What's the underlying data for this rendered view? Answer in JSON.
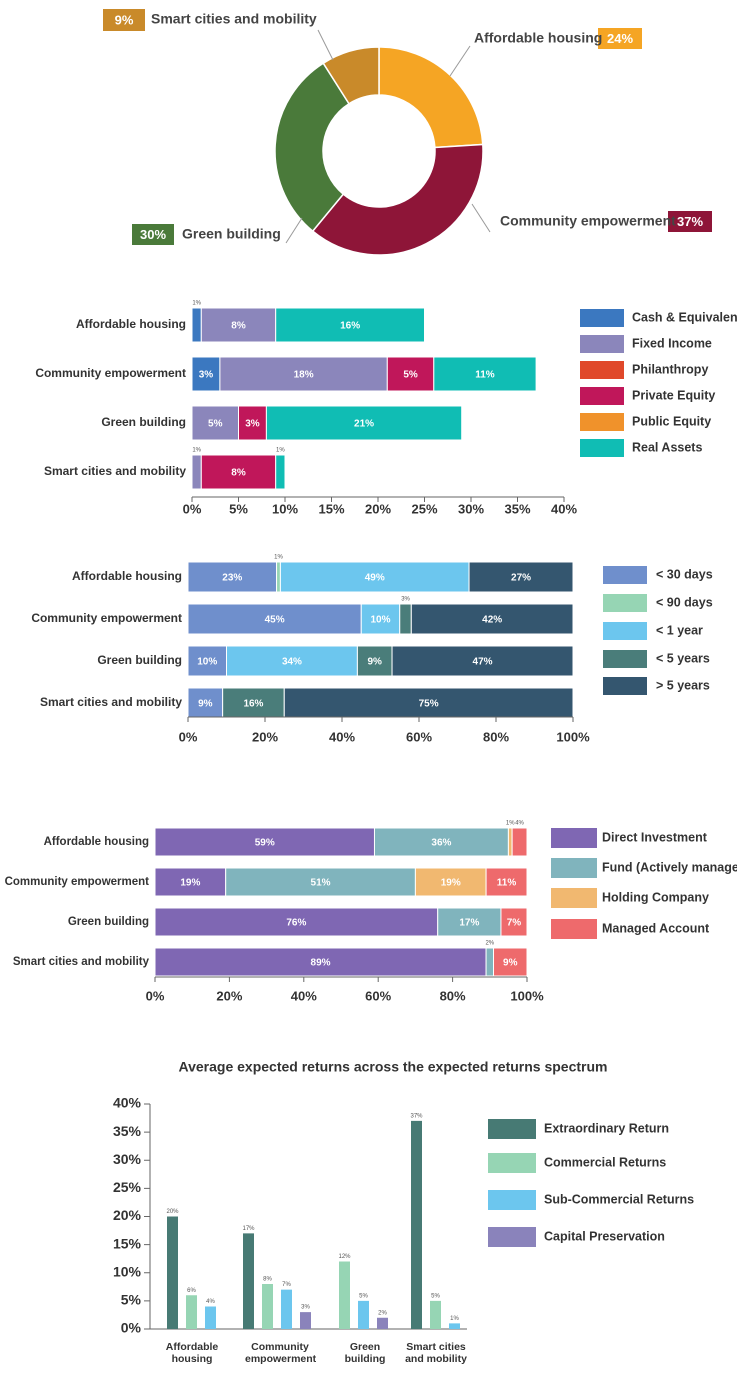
{
  "chart_data": [
    {
      "type": "pie",
      "donut": true,
      "categories": [
        "Affordable housing",
        "Community empowerment",
        "Green building",
        "Smart cities and mobility"
      ],
      "values": [
        24,
        37,
        30,
        9
      ],
      "value_labels": [
        "24%",
        "37%",
        "30%",
        "9%"
      ],
      "colors": [
        "#f5a524",
        "#8e1538",
        "#4a7a3a",
        "#c98a2a"
      ]
    },
    {
      "type": "bar",
      "orientation": "horizontal",
      "stacked": true,
      "categories": [
        "Affordable housing",
        "Community empowerment",
        "Green building",
        "Smart cities and mobility"
      ],
      "series": [
        {
          "name": "Cash & Equivalents",
          "color": "#3b78c0",
          "values": [
            1,
            3,
            0,
            0
          ],
          "value_labels": [
            "1%",
            "3%",
            null,
            null
          ]
        },
        {
          "name": "Fixed Income",
          "color": "#8b86bb",
          "values": [
            8,
            18,
            5,
            1
          ],
          "value_labels": [
            "8%",
            "18%",
            "5%",
            "1%"
          ]
        },
        {
          "name": "Philanthropy",
          "color": "#e0482a",
          "values": [
            0,
            0,
            0,
            0
          ],
          "value_labels": [
            null,
            null,
            null,
            null
          ]
        },
        {
          "name": "Private Equity",
          "color": "#c0175a",
          "values": [
            0,
            5,
            3,
            8
          ],
          "value_labels": [
            null,
            "5%",
            "3%",
            "8%"
          ]
        },
        {
          "name": "Public Equity",
          "color": "#f0922b",
          "values": [
            0,
            0,
            0,
            0
          ],
          "value_labels": [
            null,
            null,
            null,
            null
          ]
        },
        {
          "name": "Real Assets",
          "color": "#10bdb4",
          "values": [
            16,
            11,
            21,
            1
          ],
          "value_labels": [
            "16%",
            "11%",
            "21%",
            "1%"
          ]
        }
      ],
      "xlim": [
        0,
        40
      ],
      "xticks": [
        {
          "value": 0,
          "label": "0%"
        },
        {
          "value": 5,
          "label": "5%"
        },
        {
          "value": 10,
          "label": "10%"
        },
        {
          "value": 15,
          "label": "15%"
        },
        {
          "value": 20,
          "label": "20%"
        },
        {
          "value": 25,
          "label": "25%"
        },
        {
          "value": 30,
          "label": "30%"
        },
        {
          "value": 35,
          "label": "35%"
        },
        {
          "value": 40,
          "label": "40%"
        }
      ]
    },
    {
      "type": "bar",
      "orientation": "horizontal",
      "stacked": true,
      "categories": [
        "Affordable housing",
        "Community empowerment",
        "Green building",
        "Smart cities and mobility"
      ],
      "series": [
        {
          "name": "< 30 days",
          "color": "#6f8fcc",
          "values": [
            23,
            45,
            10,
            9
          ],
          "value_labels": [
            "23%",
            "45%",
            "10%",
            "9%"
          ]
        },
        {
          "name": "< 90 days",
          "color": "#96d5b4",
          "values": [
            1,
            0,
            0,
            0
          ],
          "value_labels": [
            "1%",
            null,
            null,
            null
          ]
        },
        {
          "name": "< 1 year",
          "color": "#6cc6ee",
          "values": [
            49,
            10,
            34,
            0
          ],
          "value_labels": [
            "49%",
            "10%",
            "34%",
            null
          ]
        },
        {
          "name": "< 5 years",
          "color": "#4a7d7a",
          "values": [
            0,
            3,
            9,
            16
          ],
          "value_labels": [
            null,
            "3%",
            "9%",
            "16%"
          ]
        },
        {
          "name": "> 5 years",
          "color": "#34566f",
          "values": [
            27,
            42,
            47,
            75
          ],
          "value_labels": [
            "27%",
            "42%",
            "47%",
            "75%"
          ]
        }
      ],
      "xlim": [
        0,
        100
      ],
      "xticks": [
        {
          "value": 0,
          "label": "0%"
        },
        {
          "value": 20,
          "label": "20%"
        },
        {
          "value": 40,
          "label": "40%"
        },
        {
          "value": 60,
          "label": "60%"
        },
        {
          "value": 80,
          "label": "80%"
        },
        {
          "value": 100,
          "label": "100%"
        }
      ]
    },
    {
      "type": "bar",
      "orientation": "horizontal",
      "stacked": true,
      "categories": [
        "Affordable housing",
        "Community empowerment",
        "Green building",
        "Smart cities and mobility"
      ],
      "series": [
        {
          "name": "Direct Investment",
          "color": "#7f67b3",
          "values": [
            59,
            19,
            76,
            89
          ],
          "value_labels": [
            "59%",
            "19%",
            "76%",
            "89%"
          ]
        },
        {
          "name": "Fund (Actively managed)",
          "color": "#80b4bd",
          "values": [
            36,
            51,
            17,
            2
          ],
          "value_labels": [
            "36%",
            "51%",
            "17%",
            "2%"
          ]
        },
        {
          "name": "Holding Company",
          "color": "#f1b870",
          "values": [
            1,
            19,
            0,
            0
          ],
          "value_labels": [
            "1%",
            "19%",
            null,
            null
          ]
        },
        {
          "name": "Managed Account",
          "color": "#ee6a6c",
          "values": [
            4,
            11,
            7,
            9
          ],
          "value_labels": [
            "4%",
            "11%",
            "7%",
            "9%"
          ]
        }
      ],
      "xlim": [
        0,
        100
      ],
      "xticks": [
        {
          "value": 0,
          "label": "0%"
        },
        {
          "value": 20,
          "label": "20%"
        },
        {
          "value": 40,
          "label": "40%"
        },
        {
          "value": 60,
          "label": "60%"
        },
        {
          "value": 80,
          "label": "80%"
        },
        {
          "value": 100,
          "label": "100%"
        }
      ]
    },
    {
      "type": "bar",
      "orientation": "vertical",
      "grouped": true,
      "title": "Average expected returns across the expected returns spectrum",
      "categories": [
        "Affordable housing",
        "Community empowerment",
        "Green building",
        "Smart cities and mobility"
      ],
      "series": [
        {
          "name": "Extraordinary Return",
          "color": "#477a74",
          "values": [
            20,
            17,
            0,
            37
          ],
          "value_labels": [
            "20%",
            "17%",
            null,
            "37%"
          ]
        },
        {
          "name": "Commercial Returns",
          "color": "#96d5b4",
          "values": [
            6,
            8,
            12,
            5
          ],
          "value_labels": [
            "6%",
            "8%",
            "12%",
            "5%"
          ]
        },
        {
          "name": "Sub-Commercial Returns",
          "color": "#6cc6ee",
          "values": [
            4,
            7,
            5,
            1
          ],
          "value_labels": [
            "4%",
            "7%",
            "5%",
            "1%"
          ]
        },
        {
          "name": "Capital Preservation",
          "color": "#8a83bb",
          "values": [
            0,
            3,
            2,
            0
          ],
          "value_labels": [
            null,
            "3%",
            "2%",
            null
          ]
        }
      ],
      "ylim": [
        0,
        40
      ],
      "yticks": [
        {
          "value": 0,
          "label": "0%"
        },
        {
          "value": 5,
          "label": "5%"
        },
        {
          "value": 10,
          "label": "10%"
        },
        {
          "value": 15,
          "label": "15%"
        },
        {
          "value": 20,
          "label": "20%"
        },
        {
          "value": 25,
          "label": "25%"
        },
        {
          "value": 30,
          "label": "30%"
        },
        {
          "value": 35,
          "label": "35%"
        },
        {
          "value": 40,
          "label": "40%"
        }
      ]
    }
  ]
}
